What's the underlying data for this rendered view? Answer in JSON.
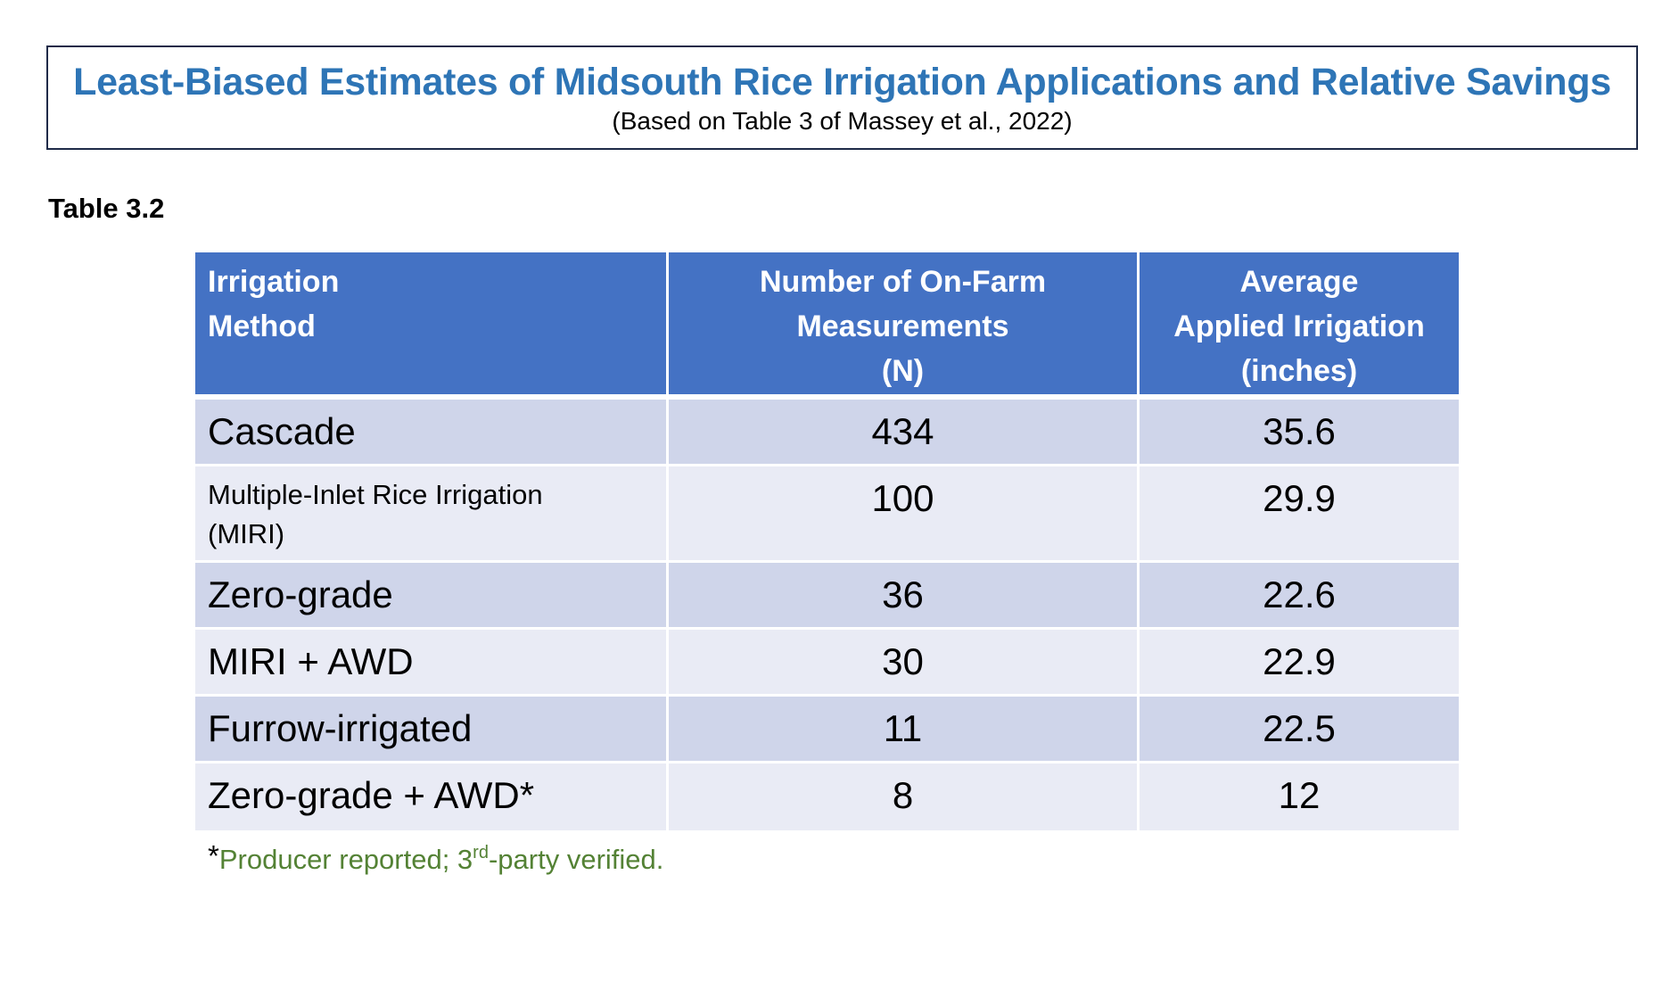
{
  "header": {
    "title": "Least-Biased Estimates of Midsouth Rice Irrigation Applications and Relative Savings",
    "subtitle": "(Based on Table 3 of Massey et al., 2022)"
  },
  "table_label": "Table 3.2",
  "table": {
    "headers": {
      "method": [
        "Irrigation",
        "Method"
      ],
      "n": [
        "Number of On-Farm",
        "Measurements",
        "(N)"
      ],
      "avg": [
        "Average",
        "Applied Irrigation",
        "(inches)"
      ]
    },
    "rows": [
      {
        "method_lines": [
          "Cascade"
        ],
        "n": "434",
        "avg": "35.6"
      },
      {
        "method_lines": [
          "Multiple-Inlet Rice Irrigation",
          "(MIRI)"
        ],
        "n": "100",
        "avg": "29.9"
      },
      {
        "method_lines": [
          "Zero-grade"
        ],
        "n": "36",
        "avg": "22.6"
      },
      {
        "method_lines": [
          "MIRI + AWD"
        ],
        "n": "30",
        "avg": "22.9"
      },
      {
        "method_lines": [
          "Furrow-irrigated"
        ],
        "n": "11",
        "avg": "22.5"
      },
      {
        "method_lines": [
          "Zero-grade + AWD*"
        ],
        "n": "8",
        "avg": "12"
      }
    ]
  },
  "footnote": {
    "star": "*",
    "text_before": "Producer reported; 3",
    "superscript": "rd",
    "text_after": "-party verified."
  },
  "colors": {
    "title": "#2e75b6",
    "header_bg": "#4472c4",
    "row_dark": "#cfd5ea",
    "row_light": "#e9ebf5",
    "footnote": "#548235"
  }
}
